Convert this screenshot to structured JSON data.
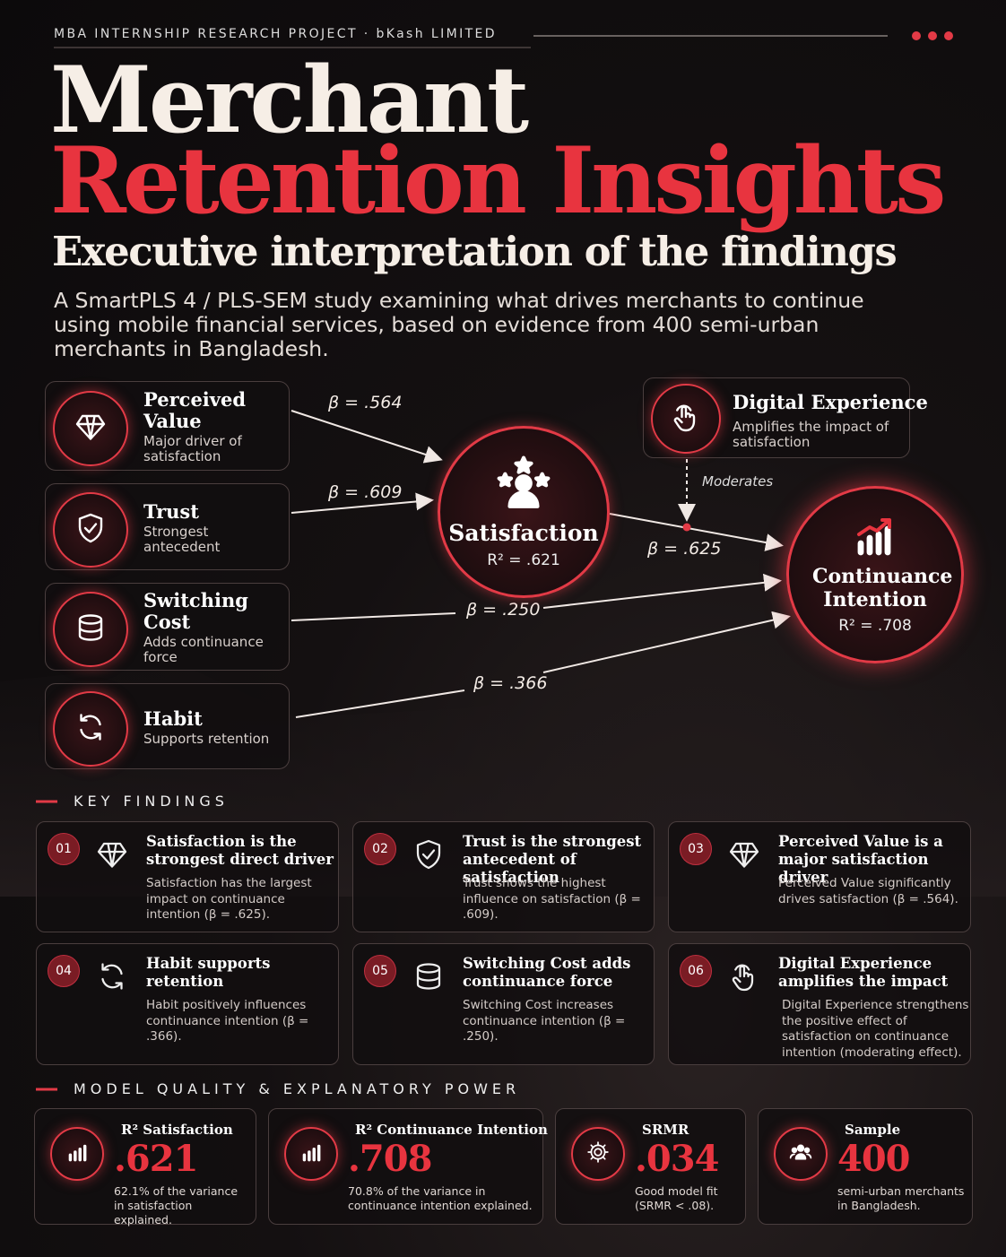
{
  "header": {
    "project": "MBA INTERNSHIP RESEARCH PROJECT · bKash LIMITED",
    "title_line1": "Merchant",
    "title_line2": "Retention Insights",
    "subtitle": "Executive interpretation of the findings",
    "description": "A SmartPLS 4 / PLS-SEM study examining what drives merchants to continue using mobile financial services, based on evidence from 400 semi-urban merchants in Bangladesh."
  },
  "model": {
    "antecedents": [
      {
        "name": "Perceived Value",
        "note": "Major driver of satisfaction",
        "path": "β = .564"
      },
      {
        "name": "Trust",
        "note": "Strongest antecedent",
        "path": "β = .609"
      },
      {
        "name": "Switching Cost",
        "note": "Adds continuance force",
        "path": "β = .250"
      },
      {
        "name": "Habit",
        "note": "Supports retention",
        "path": "β = .366"
      }
    ],
    "satisfaction": {
      "name": "Satisfaction",
      "r2": "R² = .621"
    },
    "continuance": {
      "name": "Continuance Intention",
      "r2": "R² = .708"
    },
    "satisfaction_path": "β = .625",
    "moderator": {
      "name": "Digital Experience",
      "note": "Amplifies the impact of satisfaction",
      "link": "Moderates"
    }
  },
  "key_findings": {
    "heading": "KEY FINDINGS",
    "items": [
      {
        "number": "01",
        "title": "Satisfaction is the strongest direct driver",
        "text": "Satisfaction has the largest impact on continuance intention (β = .625)."
      },
      {
        "number": "02",
        "title": "Trust is the strongest antecedent of satisfaction",
        "text": "Trust shows the highest influence on satisfaction (β = .609)."
      },
      {
        "number": "03",
        "title": "Perceived Value is a major satisfaction driver",
        "text": "Perceived Value significantly drives satisfaction (β = .564)."
      },
      {
        "number": "04",
        "title": "Habit supports retention",
        "text": "Habit positively influences continuance intention (β = .366)."
      },
      {
        "number": "05",
        "title": "Switching Cost adds continuance force",
        "text": "Switching Cost increases continuance intention (β = .250)."
      },
      {
        "number": "06",
        "title": "Digital Experience amplifies the impact",
        "text": "Digital Experience strengthens the positive effect of satisfaction on continuance intention (moderating effect)."
      }
    ]
  },
  "model_quality": {
    "heading": "MODEL QUALITY & EXPLANATORY POWER",
    "items": [
      {
        "label": "R² Satisfaction",
        "value": ".621",
        "text": "62.1% of the variance in satisfaction explained."
      },
      {
        "label": "R² Continuance Intention",
        "value": ".708",
        "text": "70.8% of the variance in continuance intention explained."
      },
      {
        "label": "SRMR",
        "value": ".034",
        "text": "Good model fit (SRMR < .08)."
      },
      {
        "label": "Sample",
        "value": "400",
        "text": "semi-urban merchants in Bangladesh."
      }
    ]
  }
}
